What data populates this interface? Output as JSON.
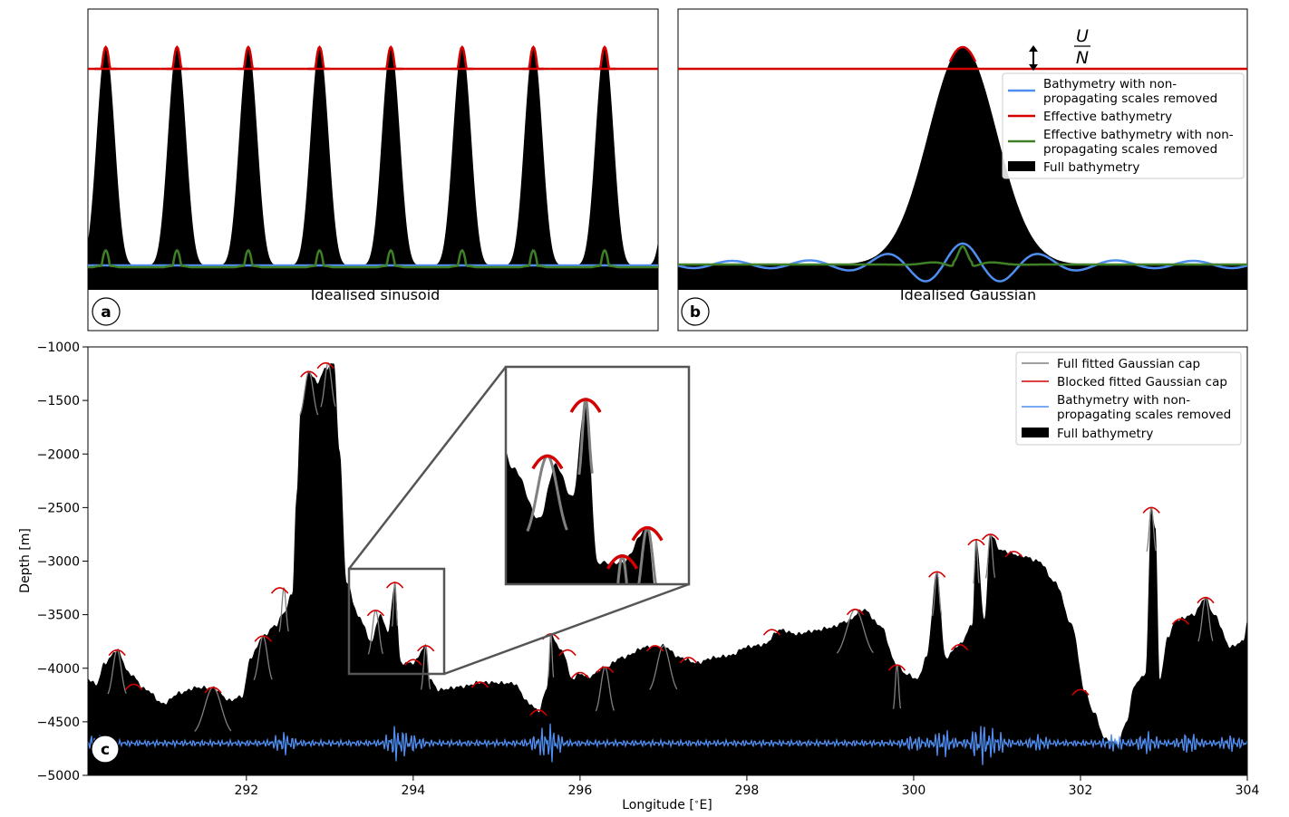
{
  "chart_data": [
    {
      "panel": "a",
      "type": "line",
      "title": "Idealised sinusoid",
      "axes_visible": false,
      "grid": false,
      "series": [
        {
          "name": "Full bathymetry",
          "kind": "filled",
          "color": "#000000",
          "shape": "cosine squared",
          "period": 1.0,
          "peak_positions": [
            0.25,
            1.25,
            2.25,
            3.25,
            4.25,
            5.25,
            6.25,
            7.25
          ],
          "x_range": [
            0,
            8.0
          ]
        },
        {
          "name": "Effective bathymetry",
          "kind": "line",
          "color": "#d40000",
          "value": 0.9
        },
        {
          "name": "Effective bathymetry with non-propagating scales removed",
          "kind": "line",
          "color": "#3f7f25"
        },
        {
          "name": "Bathymetry with non-propagating scales removed",
          "kind": "line",
          "color": "#4f8ef0",
          "value": 0
        }
      ]
    },
    {
      "panel": "b",
      "type": "line",
      "title": "Idealised Gaussian",
      "axes_visible": false,
      "grid": false,
      "annotation": {
        "text": "U/N",
        "numerator": "U",
        "denominator": "N"
      },
      "legend": {
        "placement": "top-right",
        "entries": [
          {
            "label": "Bathymetry with non-propagating scales removed",
            "color": "#4f8ef0",
            "kind": "line"
          },
          {
            "label": "Effective bathymetry",
            "color": "#d40000",
            "kind": "line"
          },
          {
            "label": "Effective bathymetry with non-propagating scales removed",
            "color": "#3f7f25",
            "kind": "line"
          },
          {
            "label": "Full bathymetry",
            "color": "#000000",
            "kind": "patch"
          }
        ]
      },
      "series": [
        {
          "name": "Full bathymetry",
          "kind": "filled",
          "color": "#000000",
          "shape": "gaussian",
          "center": 0.5,
          "width": 0.06
        },
        {
          "name": "Effective bathymetry",
          "kind": "line",
          "color": "#d40000",
          "value": 0.9
        },
        {
          "name": "Bathymetry with non-propagating scales removed",
          "kind": "line",
          "color": "#4f8ef0"
        },
        {
          "name": "Effective bathymetry with non-propagating scales removed",
          "kind": "line",
          "color": "#3f7f25"
        }
      ]
    },
    {
      "panel": "c",
      "type": "area",
      "xlabel": "Longitude [$^\\circ$E]",
      "ylabel": "Depth [m]",
      "xlim": [
        290.1,
        304
      ],
      "ylim": [
        -5000,
        -1000
      ],
      "xticks": [
        292,
        294,
        296,
        298,
        300,
        302,
        304
      ],
      "yticks": [
        -1000,
        -1500,
        -2000,
        -2500,
        -3000,
        -3500,
        -4000,
        -4500,
        -5000
      ],
      "grid": false,
      "legend": {
        "placement": "top-right",
        "entries": [
          {
            "label": "Full fitted Gaussian cap",
            "color": "#808080",
            "kind": "line"
          },
          {
            "label": "Blocked fitted Gaussian cap",
            "color": "#d40000",
            "kind": "line"
          },
          {
            "label": "Bathymetry with non-propagating scales removed",
            "color": "#4f8ef0",
            "kind": "line"
          },
          {
            "label": "Full bathymetry",
            "color": "#000000",
            "kind": "patch"
          }
        ]
      },
      "inset": {
        "xlim": [
          293.3,
          294.4
        ],
        "ylim": [
          -4050,
          -3050
        ]
      },
      "bathymetry": [
        [
          290.1,
          -4100
        ],
        [
          290.2,
          -4150
        ],
        [
          290.3,
          -3950
        ],
        [
          290.45,
          -3830
        ],
        [
          290.6,
          -4050
        ],
        [
          290.8,
          -4200
        ],
        [
          291.0,
          -4330
        ],
        [
          291.2,
          -4230
        ],
        [
          291.4,
          -4180
        ],
        [
          291.6,
          -4180
        ],
        [
          291.8,
          -4300
        ],
        [
          291.95,
          -4260
        ],
        [
          292.05,
          -3900
        ],
        [
          292.2,
          -3700
        ],
        [
          292.35,
          -3600
        ],
        [
          292.45,
          -3480
        ],
        [
          292.55,
          -3300
        ],
        [
          292.6,
          -2400
        ],
        [
          292.65,
          -1600
        ],
        [
          292.75,
          -1230
        ],
        [
          292.85,
          -1330
        ],
        [
          292.95,
          -1200
        ],
        [
          293.05,
          -1150
        ],
        [
          293.12,
          -2000
        ],
        [
          293.2,
          -3200
        ],
        [
          293.35,
          -3520
        ],
        [
          293.5,
          -3750
        ],
        [
          293.6,
          -3500
        ],
        [
          293.7,
          -3650
        ],
        [
          293.78,
          -3200
        ],
        [
          293.85,
          -3950
        ],
        [
          294.0,
          -3950
        ],
        [
          294.15,
          -3790
        ],
        [
          294.2,
          -4100
        ],
        [
          294.3,
          -4200
        ],
        [
          294.6,
          -4170
        ],
        [
          294.8,
          -4130
        ],
        [
          295.2,
          -4140
        ],
        [
          295.4,
          -4330
        ],
        [
          295.5,
          -4400
        ],
        [
          295.6,
          -4200
        ],
        [
          295.65,
          -3700
        ],
        [
          295.8,
          -3850
        ],
        [
          295.9,
          -4100
        ],
        [
          296.0,
          -4050
        ],
        [
          296.1,
          -4080
        ],
        [
          296.3,
          -3990
        ],
        [
          296.5,
          -3900
        ],
        [
          296.8,
          -3800
        ],
        [
          297.0,
          -3790
        ],
        [
          297.2,
          -3900
        ],
        [
          297.4,
          -3950
        ],
        [
          297.6,
          -3900
        ],
        [
          297.8,
          -3880
        ],
        [
          298.0,
          -3800
        ],
        [
          298.2,
          -3780
        ],
        [
          298.4,
          -3640
        ],
        [
          298.6,
          -3680
        ],
        [
          298.8,
          -3650
        ],
        [
          299.0,
          -3620
        ],
        [
          299.2,
          -3560
        ],
        [
          299.4,
          -3450
        ],
        [
          299.6,
          -3600
        ],
        [
          299.8,
          -3970
        ],
        [
          299.9,
          -4050
        ],
        [
          300.05,
          -4100
        ],
        [
          300.15,
          -3900
        ],
        [
          300.28,
          -3100
        ],
        [
          300.38,
          -3900
        ],
        [
          300.55,
          -3780
        ],
        [
          300.7,
          -3600
        ],
        [
          300.75,
          -2800
        ],
        [
          300.85,
          -3550
        ],
        [
          300.92,
          -2750
        ],
        [
          301.05,
          -2900
        ],
        [
          301.3,
          -2950
        ],
        [
          301.5,
          -3000
        ],
        [
          301.7,
          -3200
        ],
        [
          301.9,
          -3600
        ],
        [
          302.05,
          -4200
        ],
        [
          302.15,
          -4400
        ],
        [
          302.3,
          -4660
        ],
        [
          302.45,
          -4700
        ],
        [
          302.55,
          -4500
        ],
        [
          302.65,
          -4150
        ],
        [
          302.78,
          -4050
        ],
        [
          302.85,
          -2500
        ],
        [
          302.9,
          -2700
        ],
        [
          302.95,
          -4100
        ],
        [
          303.05,
          -3700
        ],
        [
          303.15,
          -3550
        ],
        [
          303.35,
          -3500
        ],
        [
          303.5,
          -3340
        ],
        [
          303.6,
          -3500
        ],
        [
          303.8,
          -3800
        ],
        [
          303.95,
          -3750
        ],
        [
          304.0,
          -3560
        ]
      ],
      "blocked_caps": [
        [
          290.45,
          -3830
        ],
        [
          290.65,
          -4150
        ],
        [
          291.6,
          -4180
        ],
        [
          292.2,
          -3700
        ],
        [
          292.4,
          -3250
        ],
        [
          292.75,
          -1230
        ],
        [
          292.95,
          -1150
        ],
        [
          293.55,
          -3460
        ],
        [
          293.78,
          -3200
        ],
        [
          294.0,
          -3920
        ],
        [
          294.15,
          -3790
        ],
        [
          294.8,
          -4130
        ],
        [
          295.5,
          -4390
        ],
        [
          295.65,
          -3680
        ],
        [
          295.85,
          -3830
        ],
        [
          296.0,
          -4040
        ],
        [
          296.3,
          -3990
        ],
        [
          296.9,
          -3790
        ],
        [
          297.3,
          -3900
        ],
        [
          298.3,
          -3640
        ],
        [
          299.3,
          -3450
        ],
        [
          299.8,
          -3970
        ],
        [
          300.28,
          -3100
        ],
        [
          300.55,
          -3780
        ],
        [
          300.75,
          -2800
        ],
        [
          300.92,
          -2750
        ],
        [
          301.2,
          -2910
        ],
        [
          302.0,
          -4200
        ],
        [
          302.85,
          -2500
        ],
        [
          303.2,
          -3540
        ],
        [
          303.5,
          -3340
        ]
      ],
      "full_caps": [
        [
          290.45,
          -3830,
          0.1
        ],
        [
          291.6,
          -4180,
          0.2
        ],
        [
          292.2,
          -3700,
          0.1
        ],
        [
          292.45,
          -3250,
          0.05
        ],
        [
          292.75,
          -1230,
          0.1
        ],
        [
          292.98,
          -1150,
          0.08
        ],
        [
          293.55,
          -3460,
          0.08
        ],
        [
          293.78,
          -3200,
          0.03
        ],
        [
          294.15,
          -3790,
          0.05
        ],
        [
          295.65,
          -3680,
          0.03
        ],
        [
          296.3,
          -3990,
          0.1
        ],
        [
          297.0,
          -3790,
          0.15
        ],
        [
          299.3,
          -3450,
          0.2
        ],
        [
          299.8,
          -3970,
          0.04
        ],
        [
          300.28,
          -3100,
          0.05
        ],
        [
          300.75,
          -2800,
          0.03
        ],
        [
          300.92,
          -2750,
          0.05
        ],
        [
          302.85,
          -2500,
          0.05
        ],
        [
          303.5,
          -3340,
          0.08
        ]
      ],
      "smoothed_amplitude_m": 60,
      "smoothed_baseline_m": -4700
    }
  ],
  "panel_labels": [
    "a",
    "b",
    "c"
  ],
  "colors": {
    "red": "#d40000",
    "blue": "#4f8ef0",
    "green": "#3f7f25",
    "gray": "#808080",
    "black": "#000000"
  }
}
